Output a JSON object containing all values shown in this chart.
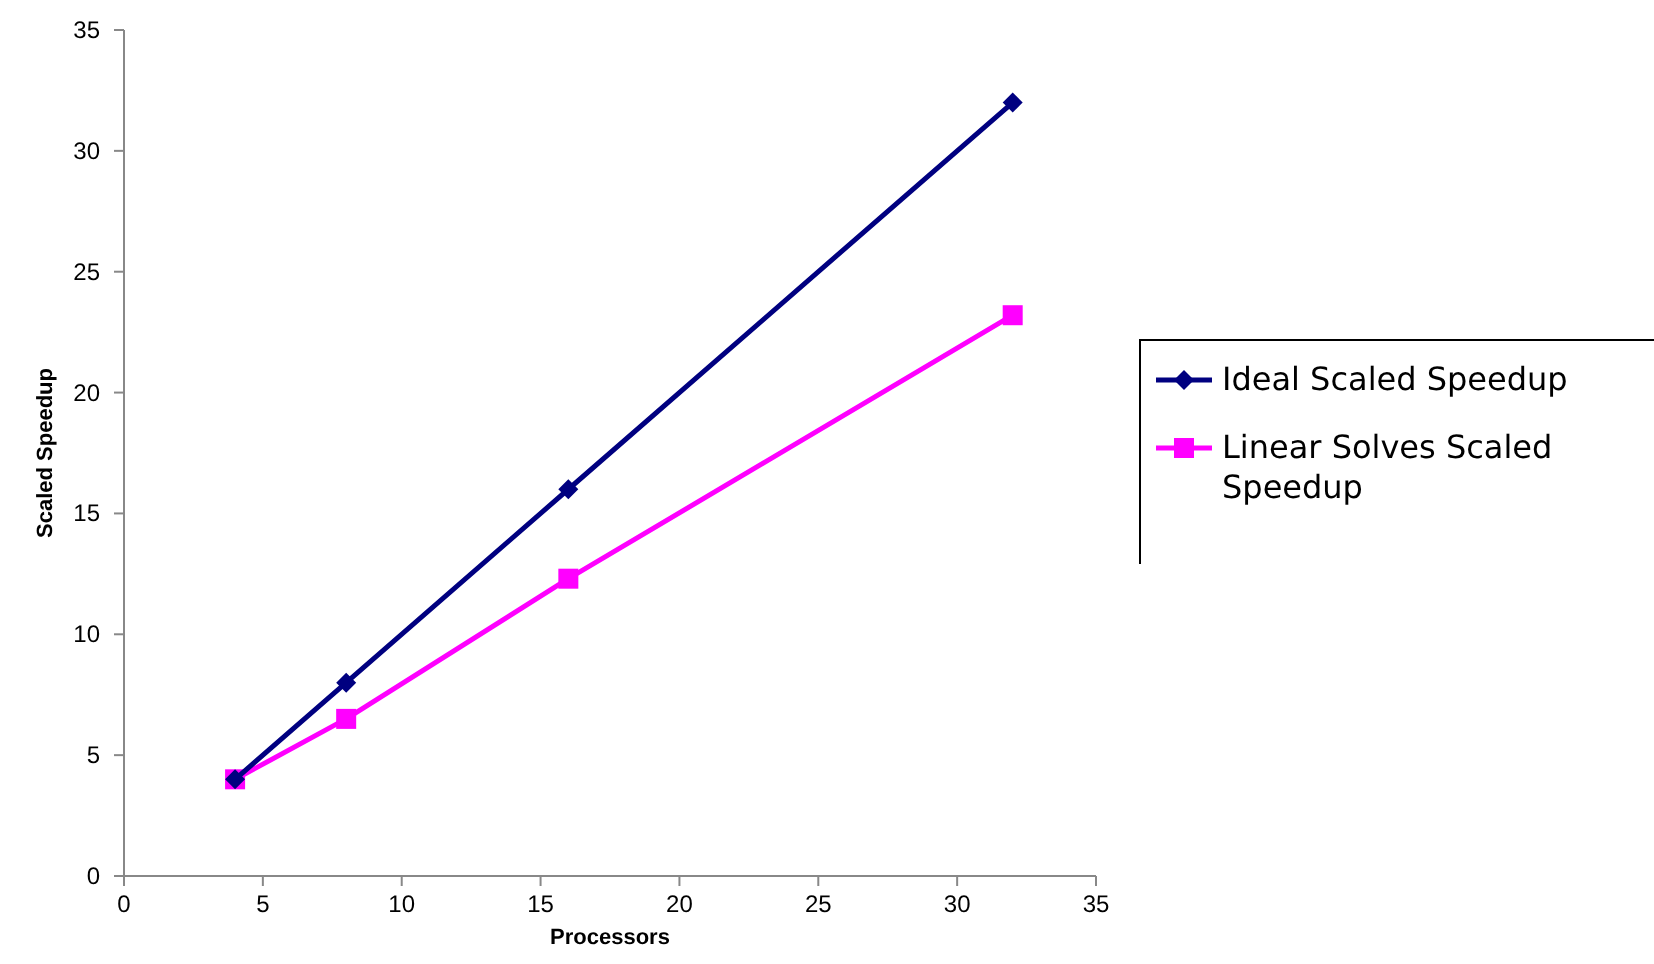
{
  "chart_data": {
    "type": "line",
    "xlabel": "Processors",
    "ylabel": "Scaled Speedup",
    "xlim": [
      0,
      35
    ],
    "xticks": [
      0,
      5,
      10,
      15,
      20,
      25,
      30,
      35
    ],
    "ylim": [
      0,
      35
    ],
    "yticks": [
      0,
      5,
      10,
      15,
      20,
      25,
      30,
      35
    ],
    "x": [
      4,
      8,
      16,
      32
    ],
    "grid": false,
    "legend": "right",
    "line_style": "solid",
    "series": [
      {
        "name": "Ideal Scaled Speedup",
        "color": "#000080",
        "marker": "diamond",
        "values": [
          4,
          8,
          16,
          32
        ]
      },
      {
        "name": "Linear Solves Scaled Speedup",
        "color": "#ff00ff",
        "marker": "square",
        "values": [
          4,
          6.5,
          12.3,
          23.2
        ]
      }
    ]
  }
}
